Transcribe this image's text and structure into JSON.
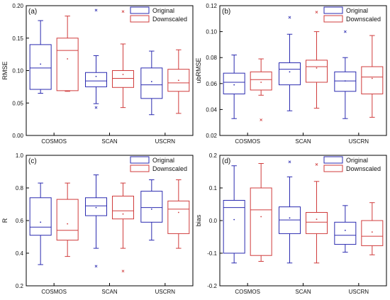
{
  "figure": {
    "colors": {
      "original": "#2b2bb0",
      "downscaled": "#d03c3c",
      "axis": "#000000"
    },
    "legend": {
      "original": "Original",
      "downscaled": "Downscaled"
    }
  },
  "chart_data": [
    {
      "type": "box",
      "panel_label": "(a)",
      "ylabel": "RMSE",
      "ylim": [
        0.0,
        0.2
      ],
      "yticks": [
        "0.00",
        "0.05",
        "0.10",
        "0.15",
        "0.20"
      ],
      "categories": [
        "COSMOS",
        "SCAN",
        "USCRN"
      ],
      "legend_position": "top-right",
      "series": [
        {
          "name": "Original",
          "boxes": [
            {
              "min": 0.065,
              "q1": 0.071,
              "median": 0.104,
              "q3": 0.14,
              "max": 0.177,
              "mean": 0.11,
              "outliers": []
            },
            {
              "min": 0.049,
              "q1": 0.075,
              "median": 0.084,
              "q3": 0.097,
              "max": 0.123,
              "mean": 0.091,
              "outliers": [
                0.043,
                0.193
              ]
            },
            {
              "min": 0.032,
              "q1": 0.057,
              "median": 0.078,
              "q3": 0.104,
              "max": 0.13,
              "mean": 0.083,
              "outliers": []
            }
          ]
        },
        {
          "name": "Downscaled",
          "boxes": [
            {
              "min": 0.068,
              "q1": 0.069,
              "median": 0.131,
              "q3": 0.15,
              "max": 0.184,
              "mean": 0.118,
              "outliers": []
            },
            {
              "min": 0.043,
              "q1": 0.074,
              "median": 0.088,
              "q3": 0.1,
              "max": 0.141,
              "mean": 0.094,
              "outliers": [
                0.191
              ]
            },
            {
              "min": 0.034,
              "q1": 0.068,
              "median": 0.081,
              "q3": 0.102,
              "max": 0.132,
              "mean": 0.085,
              "outliers": []
            }
          ]
        }
      ]
    },
    {
      "type": "box",
      "panel_label": "(b)",
      "ylabel": "ubRMSE",
      "ylim": [
        0.02,
        0.12
      ],
      "yticks": [
        "0.02",
        "0.04",
        "0.06",
        "0.08",
        "0.10",
        "0.12"
      ],
      "categories": [
        "COSMOS",
        "SCAN",
        "USCRN"
      ],
      "legend_position": "top-right",
      "series": [
        {
          "name": "Original",
          "boxes": [
            {
              "min": 0.033,
              "q1": 0.052,
              "median": 0.061,
              "q3": 0.068,
              "max": 0.082,
              "mean": 0.059,
              "outliers": []
            },
            {
              "min": 0.039,
              "q1": 0.059,
              "median": 0.071,
              "q3": 0.076,
              "max": 0.098,
              "mean": 0.069,
              "outliers": [
                0.111
              ]
            },
            {
              "min": 0.033,
              "q1": 0.054,
              "median": 0.062,
              "q3": 0.069,
              "max": 0.08,
              "mean": 0.062,
              "outliers": [
                0.1
              ]
            }
          ]
        },
        {
          "name": "Downscaled",
          "boxes": [
            {
              "min": 0.051,
              "q1": 0.055,
              "median": 0.063,
              "q3": 0.069,
              "max": 0.079,
              "mean": 0.061,
              "outliers": [
                0.032
              ]
            },
            {
              "min": 0.041,
              "q1": 0.061,
              "median": 0.073,
              "q3": 0.078,
              "max": 0.1,
              "mean": 0.072,
              "outliers": [
                0.115
              ]
            },
            {
              "min": 0.034,
              "q1": 0.052,
              "median": 0.065,
              "q3": 0.073,
              "max": 0.097,
              "mean": 0.064,
              "outliers": []
            }
          ]
        }
      ]
    },
    {
      "type": "box",
      "panel_label": "(c)",
      "ylabel": "R",
      "ylim": [
        0.2,
        1.0
      ],
      "yticks": [
        "0.2",
        "0.4",
        "0.6",
        "0.8",
        "1.0"
      ],
      "categories": [
        "COSMOS",
        "SCAN",
        "USCRN"
      ],
      "legend_position": "top-right",
      "series": [
        {
          "name": "Original",
          "boxes": [
            {
              "min": 0.33,
              "q1": 0.51,
              "median": 0.56,
              "q3": 0.74,
              "max": 0.83,
              "mean": 0.59,
              "outliers": []
            },
            {
              "min": 0.43,
              "q1": 0.63,
              "median": 0.69,
              "q3": 0.74,
              "max": 0.88,
              "mean": 0.68,
              "outliers": [
                0.32
              ]
            },
            {
              "min": 0.48,
              "q1": 0.59,
              "median": 0.68,
              "q3": 0.78,
              "max": 0.85,
              "mean": 0.67,
              "outliers": []
            }
          ]
        },
        {
          "name": "Downscaled",
          "boxes": [
            {
              "min": 0.38,
              "q1": 0.48,
              "median": 0.54,
              "q3": 0.73,
              "max": 0.83,
              "mean": 0.58,
              "outliers": []
            },
            {
              "min": 0.43,
              "q1": 0.61,
              "median": 0.66,
              "q3": 0.75,
              "max": 0.83,
              "mean": 0.64,
              "outliers": [
                0.29
              ]
            },
            {
              "min": 0.43,
              "q1": 0.52,
              "median": 0.67,
              "q3": 0.72,
              "max": 0.85,
              "mean": 0.65,
              "outliers": []
            }
          ]
        }
      ]
    },
    {
      "type": "box",
      "panel_label": "(d)",
      "ylabel": "bias",
      "ylim": [
        -0.2,
        0.2
      ],
      "yticks": [
        "-0.2",
        "-0.1",
        "0.0",
        "0.1",
        "0.2"
      ],
      "categories": [
        "COSMOS",
        "SCAN",
        "USCRN"
      ],
      "legend_position": "top-right",
      "series": [
        {
          "name": "Original",
          "boxes": [
            {
              "min": -0.13,
              "q1": -0.1,
              "median": 0.04,
              "q3": 0.062,
              "max": 0.168,
              "mean": 0.003,
              "outliers": []
            },
            {
              "min": -0.13,
              "q1": -0.04,
              "median": 0.002,
              "q3": 0.042,
              "max": 0.134,
              "mean": 0.008,
              "outliers": [
                0.18
              ]
            },
            {
              "min": -0.097,
              "q1": -0.073,
              "median": -0.045,
              "q3": -0.005,
              "max": 0.046,
              "mean": -0.03,
              "outliers": []
            }
          ]
        },
        {
          "name": "Downscaled",
          "boxes": [
            {
              "min": -0.125,
              "q1": -0.107,
              "median": 0.033,
              "q3": 0.1,
              "max": 0.175,
              "mean": 0.012,
              "outliers": []
            },
            {
              "min": -0.13,
              "q1": -0.04,
              "median": -0.005,
              "q3": 0.025,
              "max": 0.12,
              "mean": 0.004,
              "outliers": [
                0.172
              ]
            },
            {
              "min": -0.105,
              "q1": -0.077,
              "median": -0.048,
              "q3": 0.0,
              "max": 0.055,
              "mean": -0.035,
              "outliers": []
            }
          ]
        }
      ]
    }
  ]
}
